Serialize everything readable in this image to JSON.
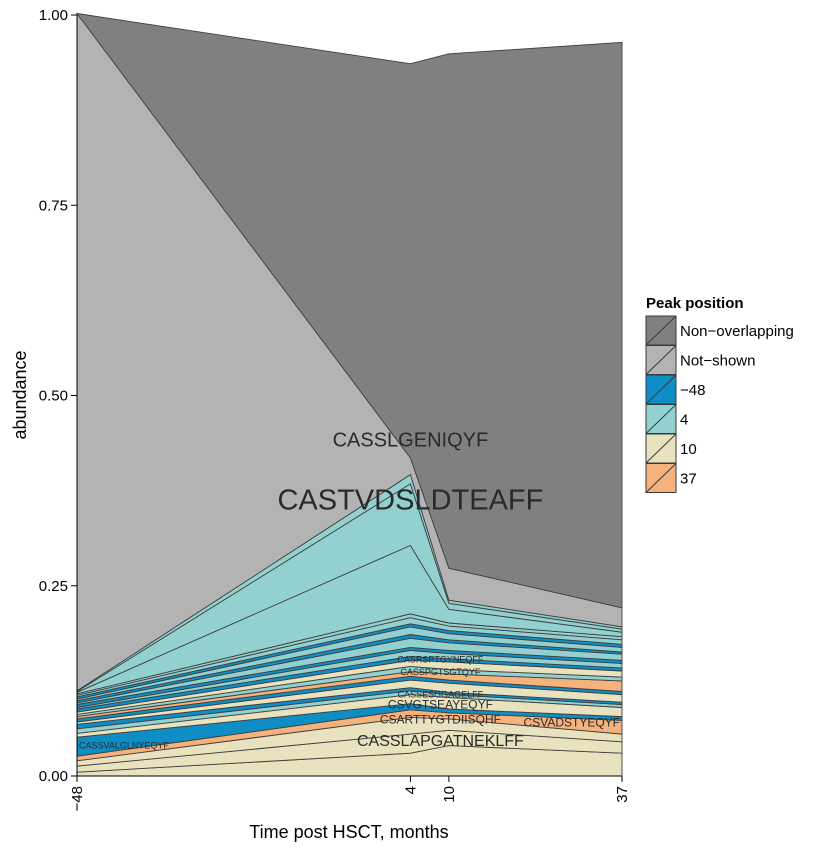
{
  "chart_data": {
    "type": "area",
    "xlabel": "Time post HSCT, months",
    "ylabel": "abundance",
    "x": [
      -48,
      4,
      10,
      37
    ],
    "x_tick_labels": [
      "−48",
      "4",
      "10",
      "37"
    ],
    "ylim": [
      0,
      1
    ],
    "y_ticks": [
      0,
      0.25,
      0.5,
      0.75,
      1
    ],
    "y_tick_labels": [
      "0.00",
      "0.25",
      "0.50",
      "0.75",
      "1.00"
    ],
    "grid": false,
    "legend": {
      "title": "Peak position",
      "placement": "right",
      "items": [
        {
          "label": "Non−overlapping",
          "color": "#808080"
        },
        {
          "label": "Not−shown",
          "color": "#b3b3b3"
        },
        {
          "label": "−48",
          "color": "#0f8ec6"
        },
        {
          "label": "4",
          "color": "#93d1d0"
        },
        {
          "label": "10",
          "color": "#e9e2bf"
        },
        {
          "label": "37",
          "color": "#f5b27c"
        }
      ]
    },
    "series": [
      {
        "name": "10",
        "values": [
          0.005,
          0.03,
          0.04,
          0.03
        ]
      },
      {
        "name": "10",
        "values": [
          0.008,
          0.025,
          0.02,
          0.015
        ]
      },
      {
        "name": "10",
        "values": [
          0.007,
          0.022,
          0.015,
          0.01
        ]
      },
      {
        "name": "37",
        "values": [
          0.006,
          0.01,
          0.008,
          0.018
        ]
      },
      {
        "name": "-48",
        "values": [
          0.025,
          0.008,
          0.005,
          0.005
        ]
      },
      {
        "name": "10",
        "values": [
          0.005,
          0.012,
          0.015,
          0.012
        ]
      },
      {
        "name": "4",
        "values": [
          0.006,
          0.005,
          0.004,
          0.004
        ]
      },
      {
        "name": "-48",
        "values": [
          0.006,
          0.004,
          0.003,
          0.003
        ]
      },
      {
        "name": "10",
        "values": [
          0.003,
          0.01,
          0.012,
          0.01
        ]
      },
      {
        "name": "-48",
        "values": [
          0.004,
          0.005,
          0.004,
          0.004
        ]
      },
      {
        "name": "37",
        "values": [
          0.003,
          0.006,
          0.008,
          0.014
        ]
      },
      {
        "name": "4",
        "values": [
          0.003,
          0.007,
          0.006,
          0.005
        ]
      },
      {
        "name": "10",
        "values": [
          0.003,
          0.008,
          0.01,
          0.008
        ]
      },
      {
        "name": "-48",
        "values": [
          0.004,
          0.005,
          0.004,
          0.004
        ]
      },
      {
        "name": "4",
        "values": [
          0.002,
          0.008,
          0.007,
          0.006
        ]
      },
      {
        "name": "-48",
        "values": [
          0.004,
          0.004,
          0.004,
          0.004
        ]
      },
      {
        "name": "4",
        "values": [
          0.002,
          0.012,
          0.01,
          0.008
        ]
      },
      {
        "name": "-48",
        "values": [
          0.003,
          0.005,
          0.004,
          0.003
        ]
      },
      {
        "name": "4",
        "values": [
          0.002,
          0.01,
          0.008,
          0.006
        ]
      },
      {
        "name": "-48",
        "values": [
          0.003,
          0.004,
          0.004,
          0.004
        ]
      },
      {
        "name": "4",
        "values": [
          0.002,
          0.008,
          0.006,
          0.006
        ]
      },
      {
        "name": "4",
        "values": [
          0.002,
          0.005,
          0.004,
          0.004
        ]
      },
      {
        "name": "4",
        "values": [
          0.002,
          0.09,
          0.018,
          0.006
        ]
      },
      {
        "name": "4",
        "values": [
          0.001,
          0.081,
          0.008,
          0.004
        ]
      },
      {
        "name": "4",
        "values": [
          0.001,
          0.012,
          0.004,
          0.003
        ]
      },
      {
        "name": "Not-shown",
        "values": [
          0.89,
          0.022,
          0.042,
          0.025
        ]
      },
      {
        "name": "Non-overlapping",
        "values": [
          0.0,
          0.518,
          0.676,
          0.743
        ]
      }
    ],
    "annotations": [
      {
        "text": "CASSLGENIQYF",
        "x": 4,
        "y": 0.44
      },
      {
        "text": "CASTVDSLDTEAFF",
        "x": 4,
        "y": 0.36
      },
      {
        "text": "CASSLAPGATNEKLFF",
        "x": 4,
        "y": 0.045
      },
      {
        "text": "CSARTTYGTDIISQHF",
        "x": 4,
        "y": 0.073
      },
      {
        "text": "CSVGTSEAYEQYF",
        "x": 4,
        "y": 0.093
      },
      {
        "text": "CSVADSTYEQYF",
        "x": 37,
        "y": 0.069
      },
      {
        "text": "CASSVALGLNYEQYF",
        "x": -48,
        "y": 0.039
      },
      {
        "text": "CASSESGGAGELFF",
        "x": 4,
        "y": 0.106
      },
      {
        "text": "CASSPGTSGTQYF",
        "x": 4,
        "y": 0.136
      },
      {
        "text": "CASRSPTGYNEQFF",
        "x": 4,
        "y": 0.152
      }
    ]
  }
}
